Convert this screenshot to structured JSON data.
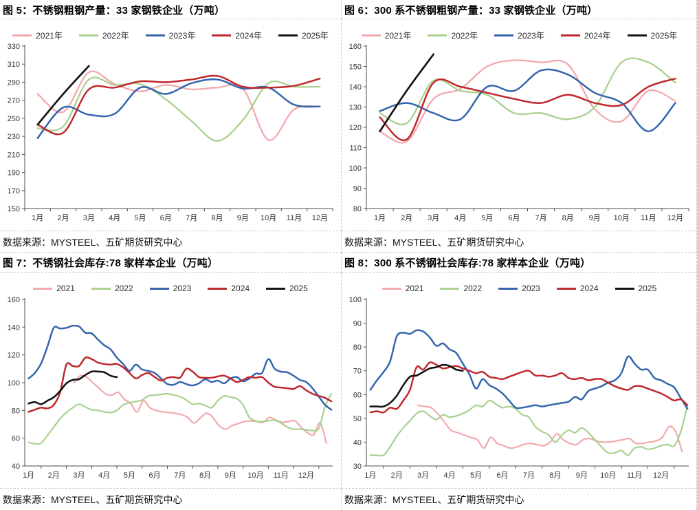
{
  "months": [
    "1月",
    "2月",
    "3月",
    "4月",
    "5月",
    "6月",
    "7月",
    "8月",
    "9月",
    "10月",
    "11月",
    "12月"
  ],
  "palette": {
    "y2021": "#F2A9AD",
    "y2022": "#A9D18E",
    "y2023": "#3465AD",
    "y2024": "#C0282D",
    "y2025": "#141414"
  },
  "chart_data": [
    {
      "id": "fig5",
      "type": "line",
      "title": "图 5：不锈钢粗钢产量：33 家钢铁企业（万吨）",
      "source": "数据来源：MYSTEEL、五矿期货研究中心",
      "ylim": [
        150,
        330
      ],
      "yticks": [
        150,
        170,
        190,
        210,
        230,
        250,
        270,
        290,
        310,
        330
      ],
      "xdomain": [
        0.5,
        12.5
      ],
      "x_labels": [
        "1月",
        "2月",
        "3月",
        "4月",
        "5月",
        "6月",
        "7月",
        "8月",
        "9月",
        "10月",
        "11月",
        "12月"
      ],
      "legend_position": "top-center",
      "grid": false,
      "series": [
        {
          "name": "2021年",
          "color": "#F2A9AD",
          "width": 2.3,
          "x_start": 1,
          "x_step": 1,
          "values": [
            277,
            257,
            301,
            288,
            280,
            287,
            282,
            284,
            283,
            226,
            260,
            263
          ]
        },
        {
          "name": "2022年",
          "color": "#A9D18E",
          "width": 2.3,
          "x_start": 1,
          "x_step": 1,
          "values": [
            239,
            241,
            293,
            287,
            288,
            271,
            247,
            225,
            248,
            289,
            285,
            285
          ]
        },
        {
          "name": "2023年",
          "color": "#3465AD",
          "width": 2.5,
          "x_start": 1,
          "x_step": 1,
          "values": [
            228,
            262,
            254,
            255,
            284,
            277,
            289,
            293,
            283,
            284,
            265,
            263
          ]
        },
        {
          "name": "2024年",
          "color": "#C0282D",
          "width": 2.5,
          "x_start": 1,
          "x_step": 1,
          "values": [
            243,
            234,
            282,
            284,
            291,
            290,
            293,
            297,
            285,
            284,
            286,
            294
          ]
        },
        {
          "name": "2025年",
          "color": "#141414",
          "width": 2.7,
          "x_start": 1,
          "x_step": 1,
          "values": [
            243,
            277,
            308
          ]
        }
      ]
    },
    {
      "id": "fig6",
      "type": "line",
      "title": "图 6：300 系不锈钢粗钢产量：33 家钢铁企业（万吨）",
      "source": "数据来源：MYSTEEL、五矿期货研究中心",
      "ylim": [
        80,
        160
      ],
      "yticks": [
        80,
        90,
        100,
        110,
        120,
        130,
        140,
        150,
        160
      ],
      "xdomain": [
        0.5,
        12.5
      ],
      "x_labels": [
        "1月",
        "2月",
        "3月",
        "4月",
        "5月",
        "6月",
        "7月",
        "8月",
        "9月",
        "10月",
        "11月",
        "12月"
      ],
      "legend_position": "top-center",
      "grid": false,
      "series": [
        {
          "name": "2021年",
          "color": "#F2A9AD",
          "width": 2.3,
          "x_start": 1,
          "x_step": 1,
          "values": [
            118,
            113,
            134,
            139,
            150,
            153,
            152,
            151,
            129,
            123,
            138,
            133
          ]
        },
        {
          "name": "2022年",
          "color": "#A9D18E",
          "width": 2.3,
          "x_start": 1,
          "x_step": 1,
          "values": [
            127,
            122,
            143,
            138,
            136,
            127,
            127,
            124,
            130,
            152,
            152,
            142
          ]
        },
        {
          "name": "2023年",
          "color": "#3465AD",
          "width": 2.5,
          "x_start": 1,
          "x_step": 1,
          "values": [
            128,
            132,
            127,
            124,
            140,
            138,
            148,
            146,
            137,
            132,
            118,
            132
          ]
        },
        {
          "name": "2024年",
          "color": "#C0282D",
          "width": 2.5,
          "x_start": 1,
          "x_step": 1,
          "values": [
            125,
            114,
            142,
            140,
            137,
            134,
            132,
            136,
            132,
            131,
            140,
            144
          ]
        },
        {
          "name": "2025年",
          "color": "#141414",
          "width": 2.7,
          "x_start": 1,
          "x_step": 1,
          "values": [
            118,
            138,
            156
          ]
        }
      ]
    },
    {
      "id": "fig7",
      "type": "line",
      "title": "图 7：不锈钢社会库存:78 家样本企业（万吨）",
      "source": "数据来源：MYSTEEL、五矿期货研究中心",
      "ylim": [
        40,
        160
      ],
      "yticks": [
        40,
        60,
        80,
        100,
        120,
        140,
        160
      ],
      "xdomain": [
        0.85,
        13.05
      ],
      "x_labels": [
        "1月",
        "2月",
        "3月",
        "4月",
        "5月",
        "6月",
        "7月",
        "8月",
        "9月",
        "10月",
        "11月",
        "12月"
      ],
      "legend_position": "top-center",
      "grid": false,
      "series": [
        {
          "name": "2021",
          "color": "#F2A9AD",
          "width": 2.2,
          "x_start": 2.8,
          "x_step": 0.25,
          "values": [
            100,
            105,
            104,
            100,
            96,
            92,
            91,
            93,
            88,
            85,
            79,
            87,
            82,
            80,
            79,
            78.5,
            78,
            77,
            75,
            71,
            74.5,
            78,
            75,
            69,
            66.5,
            69,
            70.5,
            72,
            72.5,
            72,
            71.5,
            75,
            73,
            71.5,
            72,
            72.5,
            68,
            64,
            62.5,
            71,
            56.5
          ]
        },
        {
          "name": "2022",
          "color": "#A9D18E",
          "width": 2.2,
          "x_start": 1,
          "x_step": 0.25,
          "values": [
            57,
            56,
            56.5,
            62,
            68,
            74,
            78.5,
            82,
            84.5,
            82.5,
            80.5,
            80,
            79,
            78.5,
            80,
            84,
            85.5,
            86.5,
            87.5,
            90.5,
            91,
            91.5,
            92,
            91,
            90,
            87.5,
            84.5,
            85,
            83.5,
            82,
            87,
            90.5,
            89.5,
            88.5,
            84,
            75,
            72.5,
            72,
            72.5,
            73,
            71,
            68,
            66.5,
            66.5,
            66,
            65.5,
            67,
            83,
            92
          ]
        },
        {
          "name": "2023",
          "color": "#3465AD",
          "width": 2.5,
          "x_start": 1,
          "x_step": 0.25,
          "values": [
            103,
            107,
            114,
            126,
            139.5,
            139,
            139.5,
            141,
            140.5,
            136,
            135.5,
            131,
            127,
            124,
            118,
            113.5,
            108.5,
            113,
            109.5,
            108.5,
            107,
            103,
            99,
            98.5,
            100.5,
            99,
            98,
            99.5,
            102.5,
            100.5,
            101.5,
            99.5,
            103,
            104,
            101,
            103,
            106.5,
            107,
            117,
            110,
            108,
            107.5,
            105,
            102,
            100.5,
            96,
            90,
            84,
            80.5
          ]
        },
        {
          "name": "2024",
          "color": "#C0282D",
          "width": 2.5,
          "x_start": 1,
          "x_step": 0.25,
          "values": [
            79,
            80.5,
            82,
            81.5,
            84,
            93,
            113,
            112,
            112,
            118,
            117,
            114.5,
            113.5,
            113,
            113.5,
            111,
            107,
            103,
            105.5,
            107,
            104,
            101.5,
            103.5,
            104,
            103.5,
            110,
            108,
            104,
            103.5,
            103.5,
            104.5,
            105,
            103,
            100.5,
            102,
            104,
            103.5,
            104,
            100,
            97,
            96.5,
            96,
            95.5,
            97.5,
            94.5,
            92,
            90.5,
            89,
            86.5
          ]
        },
        {
          "name": "2025",
          "color": "#141414",
          "width": 2.6,
          "x_start": 1,
          "x_step": 0.25,
          "values": [
            85,
            86,
            84.5,
            87,
            89.5,
            94,
            99.5,
            102,
            102.5,
            105.5,
            108,
            108,
            107.5,
            105,
            104
          ]
        }
      ]
    },
    {
      "id": "fig8",
      "type": "line",
      "title": "图 8：300 系不锈钢社会库存:78 家样本企业（万吨）",
      "source": "数据来源：MYSTEEL、五矿期货研究中心",
      "ylim": [
        30,
        100
      ],
      "yticks": [
        30,
        40,
        50,
        60,
        70,
        80,
        90,
        100
      ],
      "xdomain": [
        0.85,
        13.05
      ],
      "x_labels": [
        "1月",
        "2月",
        "3月",
        "4月",
        "5月",
        "6月",
        "7月",
        "8月",
        "9月",
        "10月",
        "11月",
        "12月"
      ],
      "legend_position": "top-center",
      "grid": false,
      "series": [
        {
          "name": "2021",
          "color": "#F2A9AD",
          "width": 2.2,
          "x_start": 2.8,
          "x_step": 0.25,
          "values": [
            55.5,
            55,
            54.5,
            52,
            48.5,
            45,
            44,
            43,
            42,
            41,
            37.5,
            42,
            39.5,
            38.5,
            37.5,
            38,
            39,
            39.5,
            39,
            38.5,
            40,
            43.5,
            41,
            39.5,
            39,
            41,
            41.5,
            40.5,
            40,
            40,
            40.5,
            41,
            41.5,
            39.5,
            39.5,
            40,
            40.5,
            42,
            46.5,
            44.5,
            36
          ]
        },
        {
          "name": "2022",
          "color": "#A9D18E",
          "width": 2.2,
          "x_start": 1,
          "x_step": 0.25,
          "values": [
            34.5,
            34.5,
            34.5,
            38,
            42.5,
            46,
            49,
            52,
            53,
            51,
            49.5,
            51.5,
            50.5,
            51,
            52,
            53.5,
            55.5,
            55,
            57.5,
            56,
            54.5,
            55,
            54,
            51.5,
            50.5,
            46.5,
            44.5,
            43,
            40,
            43,
            45,
            44,
            46,
            44,
            41,
            38,
            35.5,
            35.5,
            36.5,
            34.5,
            37.5,
            38,
            37,
            37.5,
            38.5,
            39,
            38.5,
            44.5,
            55.5
          ]
        },
        {
          "name": "2023",
          "color": "#3465AD",
          "width": 2.5,
          "x_start": 1,
          "x_step": 0.25,
          "values": [
            62,
            66,
            69.5,
            74,
            84.5,
            86,
            85.5,
            87,
            86.5,
            84,
            80.5,
            81.5,
            79,
            77.5,
            73,
            68.5,
            62.5,
            66.5,
            64,
            62.5,
            60.5,
            57.5,
            54.5,
            54.5,
            55,
            55.5,
            55,
            55.5,
            56,
            56.5,
            57,
            59,
            58,
            61.5,
            62.5,
            63.5,
            65,
            66,
            69,
            76,
            73,
            70.5,
            70.5,
            67,
            66,
            64.5,
            63,
            58.5,
            54
          ]
        },
        {
          "name": "2024",
          "color": "#C0282D",
          "width": 2.5,
          "x_start": 1,
          "x_step": 0.25,
          "values": [
            52.5,
            53,
            52.5,
            54.5,
            54,
            57.5,
            62,
            71.5,
            70.5,
            73.5,
            72.5,
            71,
            71.5,
            72,
            71,
            70,
            69,
            69.5,
            67.5,
            67,
            66.5,
            67.5,
            68.5,
            69.5,
            70,
            68,
            68,
            67.5,
            68,
            69,
            67,
            66.5,
            67,
            66,
            66.5,
            66.5,
            65,
            63.5,
            62.5,
            62,
            63.5,
            63.5,
            62.5,
            61.5,
            60.5,
            59,
            57.5,
            58,
            55.5
          ]
        },
        {
          "name": "2025",
          "color": "#141414",
          "width": 2.6,
          "x_start": 1,
          "x_step": 0.25,
          "values": [
            55,
            55,
            55,
            56.5,
            59.5,
            64,
            67.5,
            68,
            69.5,
            71,
            71.5,
            72.5,
            72,
            70.5,
            70
          ]
        }
      ]
    }
  ],
  "axis_style": {
    "axis_color": "#4d4d4d",
    "tick_label_color": "#333333",
    "tick_label_size": 11
  }
}
